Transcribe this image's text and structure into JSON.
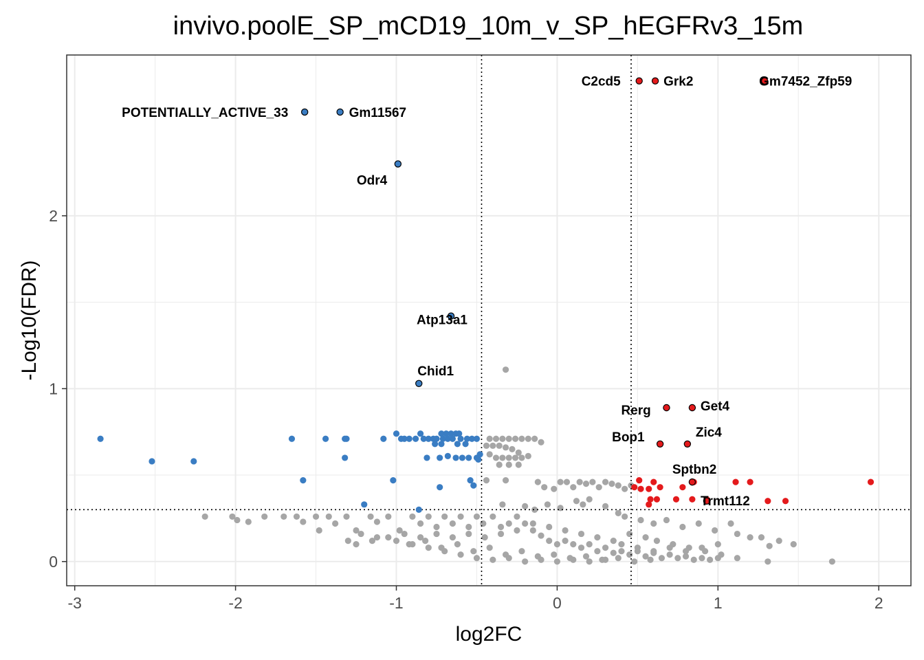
{
  "chart_data": {
    "type": "scatter",
    "title": "invivo.poolE_SP_mCD19_10m_v_SP_hEGFRv3_15m",
    "xlabel": "log2FC",
    "ylabel": "-Log10(FDR)",
    "xlim": [
      -3.05,
      2.2
    ],
    "ylim": [
      -0.14,
      2.93
    ],
    "x_ticks": [
      -3,
      -2,
      -1,
      0,
      1,
      2
    ],
    "y_ticks": [
      0,
      1,
      2
    ],
    "x_tick_labels": [
      "-3",
      "-2",
      "-1",
      "0",
      "1",
      "2"
    ],
    "y_tick_labels": [
      "0",
      "1",
      "2"
    ],
    "grid": true,
    "legend": "none",
    "thresholds": {
      "log2fc": [
        -0.47,
        0.46
      ],
      "neg_log10_fdr": 0.3
    },
    "colors": {
      "down": "#3a7dc3",
      "up": "#e41a1c",
      "ns": "#a6a6a6",
      "outline": "#000000",
      "threshold_line": "#000000"
    },
    "labeled_points": [
      {
        "gene": "POTENTIALLY_ACTIVE_33",
        "x": -1.57,
        "y": 2.6,
        "group": "down"
      },
      {
        "gene": "Gm11567",
        "x": -1.35,
        "y": 2.6,
        "group": "down"
      },
      {
        "gene": "Odr4",
        "x": -0.99,
        "y": 2.3,
        "group": "down"
      },
      {
        "gene": "Atp13a1",
        "x": -0.66,
        "y": 1.42,
        "group": "down"
      },
      {
        "gene": "Chid1",
        "x": -0.86,
        "y": 1.03,
        "group": "down"
      },
      {
        "gene": "C2cd5",
        "x": 0.51,
        "y": 2.78,
        "group": "up"
      },
      {
        "gene": "Grk2",
        "x": 0.61,
        "y": 2.78,
        "group": "up"
      },
      {
        "gene": "Gm7452_Zfp59",
        "x": 1.29,
        "y": 2.78,
        "group": "up"
      },
      {
        "gene": "Rerg",
        "x": 0.68,
        "y": 0.89,
        "group": "up"
      },
      {
        "gene": "Get4",
        "x": 0.84,
        "y": 0.89,
        "group": "up"
      },
      {
        "gene": "Bop1",
        "x": 0.64,
        "y": 0.68,
        "group": "up"
      },
      {
        "gene": "Zic4",
        "x": 0.81,
        "y": 0.68,
        "group": "up"
      },
      {
        "gene": "Sptbn2",
        "x": 0.84,
        "y": 0.46,
        "group": "up"
      },
      {
        "gene": "Trmt112",
        "x": 0.93,
        "y": 0.35,
        "group": "up"
      }
    ],
    "down_points": [
      [
        -2.84,
        0.71
      ],
      [
        -2.52,
        0.58
      ],
      [
        -2.26,
        0.58
      ],
      [
        -1.65,
        0.71
      ],
      [
        -1.44,
        0.71
      ],
      [
        -1.32,
        0.71
      ],
      [
        -1.31,
        0.71
      ],
      [
        -1.32,
        0.6
      ],
      [
        -1.58,
        0.47
      ],
      [
        -1.2,
        0.33
      ],
      [
        -1.02,
        0.47
      ],
      [
        -0.86,
        0.3
      ],
      [
        -1.08,
        0.71
      ],
      [
        -1.0,
        0.74
      ],
      [
        -0.97,
        0.71
      ],
      [
        -0.95,
        0.71
      ],
      [
        -0.92,
        0.71
      ],
      [
        -0.88,
        0.71
      ],
      [
        -0.85,
        0.74
      ],
      [
        -0.83,
        0.71
      ],
      [
        -0.8,
        0.71
      ],
      [
        -0.77,
        0.71
      ],
      [
        -0.75,
        0.71
      ],
      [
        -0.72,
        0.74
      ],
      [
        -0.69,
        0.74
      ],
      [
        -0.66,
        0.74
      ],
      [
        -0.63,
        0.74
      ],
      [
        -0.61,
        0.74
      ],
      [
        -0.71,
        0.71
      ],
      [
        -0.68,
        0.71
      ],
      [
        -0.65,
        0.71
      ],
      [
        -0.6,
        0.71
      ],
      [
        -0.56,
        0.71
      ],
      [
        -0.53,
        0.71
      ],
      [
        -0.5,
        0.71
      ],
      [
        -0.76,
        0.68
      ],
      [
        -0.72,
        0.68
      ],
      [
        -0.62,
        0.68
      ],
      [
        -0.57,
        0.68
      ],
      [
        -0.81,
        0.6
      ],
      [
        -0.73,
        0.6
      ],
      [
        -0.68,
        0.61
      ],
      [
        -0.63,
        0.6
      ],
      [
        -0.59,
        0.6
      ],
      [
        -0.55,
        0.6
      ],
      [
        -0.5,
        0.6
      ],
      [
        -0.48,
        0.62
      ],
      [
        -0.49,
        0.59
      ],
      [
        -0.54,
        0.47
      ],
      [
        -0.52,
        0.44
      ],
      [
        -0.73,
        0.43
      ]
    ],
    "up_points": [
      [
        0.51,
        0.47
      ],
      [
        0.48,
        0.43
      ],
      [
        0.52,
        0.42
      ],
      [
        0.57,
        0.42
      ],
      [
        0.6,
        0.46
      ],
      [
        0.64,
        0.43
      ],
      [
        0.58,
        0.36
      ],
      [
        0.62,
        0.36
      ],
      [
        0.57,
        0.33
      ],
      [
        0.74,
        0.36
      ],
      [
        0.78,
        0.43
      ],
      [
        0.84,
        0.36
      ],
      [
        0.85,
        0.46
      ],
      [
        0.93,
        0.36
      ],
      [
        1.11,
        0.46
      ],
      [
        1.2,
        0.46
      ],
      [
        1.31,
        0.35
      ],
      [
        1.42,
        0.35
      ],
      [
        1.95,
        0.46
      ]
    ],
    "ns_points": [
      [
        -0.32,
        1.11
      ],
      [
        -2.19,
        0.26
      ],
      [
        -2.02,
        0.26
      ],
      [
        -1.99,
        0.24
      ],
      [
        -1.92,
        0.23
      ],
      [
        -1.82,
        0.26
      ],
      [
        -1.7,
        0.26
      ],
      [
        -1.62,
        0.26
      ],
      [
        -1.58,
        0.23
      ],
      [
        -1.5,
        0.26
      ],
      [
        -1.48,
        0.18
      ],
      [
        -1.42,
        0.26
      ],
      [
        -1.38,
        0.22
      ],
      [
        -1.31,
        0.26
      ],
      [
        -1.25,
        0.18
      ],
      [
        -1.16,
        0.26
      ],
      [
        -1.12,
        0.23
      ],
      [
        -1.05,
        0.26
      ],
      [
        -0.98,
        0.18
      ],
      [
        -0.9,
        0.26
      ],
      [
        -0.85,
        0.22
      ],
      [
        -0.8,
        0.26
      ],
      [
        -0.75,
        0.2
      ],
      [
        -0.7,
        0.26
      ],
      [
        -0.65,
        0.22
      ],
      [
        -0.6,
        0.26
      ],
      [
        -0.55,
        0.2
      ],
      [
        -0.5,
        0.26
      ],
      [
        -0.46,
        0.22
      ],
      [
        -0.4,
        0.26
      ],
      [
        -0.35,
        0.2
      ],
      [
        -0.3,
        0.22
      ],
      [
        -0.25,
        0.26
      ],
      [
        -0.2,
        0.22
      ],
      [
        -0.15,
        0.18
      ],
      [
        -0.1,
        0.15
      ],
      [
        -0.05,
        0.12
      ],
      [
        0.0,
        0.1
      ],
      [
        0.05,
        0.12
      ],
      [
        0.1,
        0.1
      ],
      [
        0.15,
        0.08
      ],
      [
        0.2,
        0.1
      ],
      [
        0.25,
        0.06
      ],
      [
        0.3,
        0.08
      ],
      [
        0.35,
        0.05
      ],
      [
        0.4,
        0.06
      ],
      [
        0.45,
        0.04
      ],
      [
        0.5,
        0.06
      ],
      [
        0.55,
        0.03
      ],
      [
        0.6,
        0.05
      ],
      [
        0.65,
        0.02
      ],
      [
        0.7,
        0.04
      ],
      [
        0.75,
        0.02
      ],
      [
        0.8,
        0.03
      ],
      [
        0.85,
        0.01
      ],
      [
        0.9,
        0.02
      ],
      [
        0.95,
        0.01
      ],
      [
        1.0,
        0.02
      ],
      [
        -1.3,
        0.12
      ],
      [
        -1.22,
        0.16
      ],
      [
        -1.12,
        0.14
      ],
      [
        -1.0,
        0.12
      ],
      [
        -0.92,
        0.1
      ],
      [
        -0.82,
        0.12
      ],
      [
        -0.72,
        0.08
      ],
      [
        -0.62,
        0.1
      ],
      [
        -0.52,
        0.06
      ],
      [
        -0.42,
        0.08
      ],
      [
        -0.32,
        0.04
      ],
      [
        -0.22,
        0.06
      ],
      [
        -0.12,
        0.03
      ],
      [
        -0.02,
        0.04
      ],
      [
        0.08,
        0.02
      ],
      [
        0.18,
        0.03
      ],
      [
        0.28,
        0.01
      ],
      [
        0.38,
        0.02
      ],
      [
        0.48,
        0.0
      ],
      [
        0.58,
        0.01
      ],
      [
        -0.42,
        0.71
      ],
      [
        -0.38,
        0.71
      ],
      [
        -0.34,
        0.71
      ],
      [
        -0.3,
        0.71
      ],
      [
        -0.26,
        0.71
      ],
      [
        -0.22,
        0.71
      ],
      [
        -0.18,
        0.71
      ],
      [
        -0.14,
        0.71
      ],
      [
        -0.1,
        0.69
      ],
      [
        -0.44,
        0.67
      ],
      [
        -0.4,
        0.67
      ],
      [
        -0.36,
        0.67
      ],
      [
        -0.32,
        0.66
      ],
      [
        -0.28,
        0.65
      ],
      [
        -0.24,
        0.63
      ],
      [
        -0.42,
        0.62
      ],
      [
        -0.38,
        0.6
      ],
      [
        -0.34,
        0.6
      ],
      [
        -0.3,
        0.6
      ],
      [
        -0.26,
        0.6
      ],
      [
        -0.22,
        0.6
      ],
      [
        -0.18,
        0.61
      ],
      [
        -0.36,
        0.56
      ],
      [
        -0.3,
        0.56
      ],
      [
        -0.24,
        0.56
      ],
      [
        -0.32,
        0.47
      ],
      [
        -0.44,
        0.47
      ],
      [
        -0.12,
        0.46
      ],
      [
        -0.08,
        0.43
      ],
      [
        -0.02,
        0.42
      ],
      [
        0.02,
        0.46
      ],
      [
        0.06,
        0.46
      ],
      [
        0.1,
        0.43
      ],
      [
        0.14,
        0.46
      ],
      [
        0.18,
        0.45
      ],
      [
        0.22,
        0.46
      ],
      [
        0.26,
        0.43
      ],
      [
        0.3,
        0.46
      ],
      [
        0.34,
        0.45
      ],
      [
        0.38,
        0.44
      ],
      [
        0.42,
        0.42
      ],
      [
        0.46,
        0.44
      ],
      [
        0.12,
        0.35
      ],
      [
        0.16,
        0.33
      ],
      [
        0.2,
        0.36
      ],
      [
        0.3,
        0.32
      ],
      [
        -0.2,
        0.32
      ],
      [
        -0.14,
        0.3
      ],
      [
        -0.06,
        0.33
      ],
      [
        0.02,
        0.31
      ],
      [
        -0.34,
        0.33
      ],
      [
        0.38,
        0.28
      ],
      [
        0.42,
        0.26
      ],
      [
        0.52,
        0.24
      ],
      [
        0.6,
        0.22
      ],
      [
        0.68,
        0.24
      ],
      [
        0.78,
        0.2
      ],
      [
        0.88,
        0.22
      ],
      [
        0.98,
        0.18
      ],
      [
        1.08,
        0.22
      ],
      [
        1.12,
        0.16
      ],
      [
        1.2,
        0.14
      ],
      [
        1.27,
        0.14
      ],
      [
        1.32,
        0.09
      ],
      [
        1.38,
        0.12
      ],
      [
        1.47,
        0.1
      ],
      [
        1.31,
        0.0
      ],
      [
        1.71,
        0.0
      ],
      [
        1.12,
        0.02
      ],
      [
        1.02,
        0.04
      ],
      [
        0.92,
        0.06
      ],
      [
        0.82,
        0.08
      ],
      [
        0.72,
        0.1
      ],
      [
        0.62,
        0.12
      ],
      [
        0.55,
        0.14
      ],
      [
        0.45,
        0.16
      ],
      [
        0.35,
        0.12
      ],
      [
        0.25,
        0.14
      ],
      [
        0.15,
        0.16
      ],
      [
        0.05,
        0.18
      ],
      [
        -0.05,
        0.2
      ],
      [
        -0.15,
        0.22
      ],
      [
        -0.25,
        0.18
      ],
      [
        -0.35,
        0.16
      ],
      [
        -0.45,
        0.14
      ],
      [
        -0.55,
        0.16
      ],
      [
        -0.65,
        0.14
      ],
      [
        -0.75,
        0.16
      ],
      [
        -0.85,
        0.14
      ],
      [
        -0.95,
        0.16
      ],
      [
        -1.05,
        0.14
      ],
      [
        -1.15,
        0.12
      ],
      [
        -1.25,
        0.1
      ],
      [
        -0.6,
        0.04
      ],
      [
        -0.5,
        0.02
      ],
      [
        -0.4,
        0.01
      ],
      [
        -0.3,
        0.02
      ],
      [
        -0.2,
        0.0
      ],
      [
        -0.1,
        0.01
      ],
      [
        0.0,
        0.0
      ],
      [
        0.1,
        0.01
      ],
      [
        0.2,
        0.0
      ],
      [
        0.3,
        0.01
      ],
      [
        -0.7,
        0.06
      ],
      [
        -0.8,
        0.08
      ],
      [
        -0.9,
        0.1
      ],
      [
        0.5,
        0.08
      ],
      [
        0.6,
        0.06
      ],
      [
        0.7,
        0.08
      ],
      [
        0.8,
        0.06
      ],
      [
        0.9,
        0.08
      ],
      [
        1.0,
        0.1
      ],
      [
        0.4,
        0.1
      ]
    ]
  }
}
